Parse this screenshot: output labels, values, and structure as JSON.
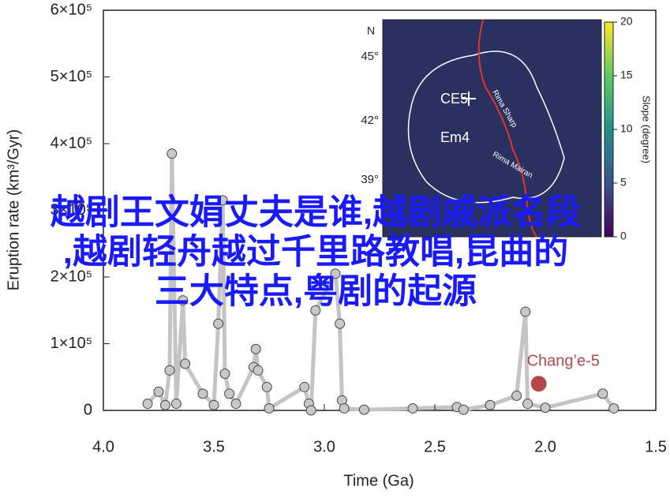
{
  "chart_data": {
    "type": "line",
    "y_label": "Eruption rate (km³/Gyr)",
    "x_label": "Time (Ga)",
    "xlim": [
      4.0,
      1.5
    ],
    "xticks": [
      {
        "value": 4,
        "label": "4.0"
      },
      3.5,
      {
        "value": 3,
        "label": "3.0"
      },
      2.5,
      {
        "value": 2,
        "label": "2.0"
      },
      1.5
    ],
    "ylim": [
      0,
      600000
    ],
    "yticks": [
      0,
      {
        "value": 100000,
        "label": "1×10⁵"
      },
      {
        "value": 200000,
        "label": "2×10⁵"
      },
      {
        "value": 300000,
        "label": "3×10⁵"
      },
      {
        "value": 400000,
        "label": "4×10⁵"
      },
      {
        "value": 500000,
        "label": "5×10⁵"
      },
      {
        "value": 600000,
        "label": "6×10⁵"
      }
    ],
    "series": [
      {
        "color": "#c4c4c4",
        "x": [
          3.8,
          3.75,
          3.72,
          3.7,
          3.69,
          3.67,
          3.64,
          3.63,
          3.55,
          3.5,
          3.48,
          3.46,
          3.45,
          3.43,
          3.4,
          3.32,
          3.31,
          3.3,
          3.26,
          3.25,
          3.09,
          3.07,
          3.06,
          3.04,
          2.95,
          2.93,
          2.92,
          2.91,
          2.82,
          2.6,
          2.4,
          2.37,
          2.25,
          2.13,
          2.09,
          2.08,
          2.0,
          1.74,
          1.69
        ],
        "values": [
          10000,
          28000,
          8000,
          60000,
          385000,
          10000,
          165000,
          70000,
          25000,
          8000,
          130000,
          315000,
          55000,
          25000,
          10000,
          65000,
          92000,
          60000,
          35000,
          3000,
          35000,
          10000,
          0,
          150000,
          205000,
          130000,
          15000,
          3000,
          1000,
          3000,
          5000,
          1000,
          8000,
          22000,
          148000,
          10000,
          4000,
          25000,
          3000
        ]
      }
    ],
    "highlight": {
      "label": "Chang’e-5",
      "x": 2.03,
      "value": 40000,
      "color": "#b5474b"
    },
    "inset": {
      "north": "N",
      "lat_labels": [
        "45°",
        "42°",
        "39°"
      ],
      "units": [
        "CE5",
        "Em4"
      ],
      "rilles": [
        "Rima Sharp",
        "Rima Mairan"
      ],
      "colorbar": {
        "label": "Slope (degree)",
        "lim": [
          0,
          20
        ],
        "ticks": [
          0,
          5,
          10,
          15,
          20
        ]
      }
    },
    "overlay_text": [
      "越剧王文娟丈夫是谁,越剧戚派名段",
      ",越剧轻舟越过千里路教唱,昆曲的",
      "三大特点,粤剧的起源"
    ]
  }
}
